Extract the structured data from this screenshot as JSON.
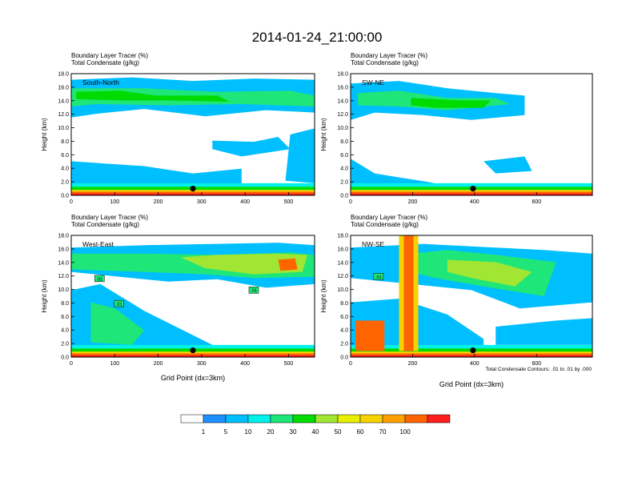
{
  "title": "2014-01-24_21:00:00",
  "panel_header": {
    "line1_label": "Boundary Layer Tracer",
    "line1_unit": "(%)",
    "line2_label": "Total Condensate",
    "line2_unit": "(g/kg)"
  },
  "xlabel": "Grid Point (dx=3km)",
  "ylabel": "Height (km)",
  "contour_note": "Total Condensate Contours: .01 to .01 by .000",
  "colorbar": {
    "labels": [
      "1",
      "5",
      "10",
      "20",
      "30",
      "40",
      "50",
      "60",
      "70",
      "100"
    ],
    "colors": [
      "#ffffff",
      "#1e90ff",
      "#00bfff",
      "#00f0ea",
      "#1ee678",
      "#00dc00",
      "#a0e632",
      "#e6f000",
      "#f5d200",
      "#ffa000",
      "#ff6400",
      "#ff1e1e"
    ]
  },
  "chart_data": [
    {
      "type": "heatmap",
      "panel_label": "South-North",
      "xlim": [
        0,
        560
      ],
      "ylim": [
        0,
        18
      ],
      "xticks": [
        0,
        100,
        200,
        300,
        400,
        500
      ],
      "yticks": [
        "0.0",
        "2.0",
        "4.0",
        "6.0",
        "8.0",
        "10.0",
        "12.0",
        "14.0",
        "16.0",
        "18.0"
      ],
      "site_marker": {
        "x": 280,
        "y": 1.0
      },
      "contour_labels": []
    },
    {
      "type": "heatmap",
      "panel_label": "SW-NE",
      "xlim": [
        0,
        780
      ],
      "ylim": [
        0,
        18
      ],
      "xticks": [
        0,
        200,
        400,
        600
      ],
      "yticks": [
        "0.0",
        "2.0",
        "4.0",
        "6.0",
        "8.0",
        "10.0",
        "12.0",
        "14.0",
        "16.0",
        "18.0"
      ],
      "site_marker": {
        "x": 395,
        "y": 1.0
      },
      "contour_labels": []
    },
    {
      "type": "heatmap",
      "panel_label": "West-East",
      "xlim": [
        0,
        560
      ],
      "ylim": [
        0,
        18
      ],
      "xticks": [
        0,
        100,
        200,
        300,
        400,
        500
      ],
      "yticks": [
        "0.0",
        "2.0",
        "4.0",
        "6.0",
        "8.0",
        "10.0",
        "12.0",
        "14.0",
        "16.0",
        "18.0"
      ],
      "site_marker": {
        "x": 280,
        "y": 1.0
      },
      "contour_labels": [
        {
          "text": ".01",
          "x": 65,
          "y": 11.5
        },
        {
          "text": ".01",
          "x": 110,
          "y": 7.8
        },
        {
          "text": ".01",
          "x": 420,
          "y": 9.8
        }
      ]
    },
    {
      "type": "heatmap",
      "panel_label": "NW-SE",
      "xlim": [
        0,
        780
      ],
      "ylim": [
        0,
        18
      ],
      "xticks": [
        0,
        200,
        400,
        600
      ],
      "yticks": [
        "0.0",
        "2.0",
        "4.0",
        "6.0",
        "8.0",
        "10.0",
        "12.0",
        "14.0",
        "16.0",
        "18.0"
      ],
      "site_marker": {
        "x": 395,
        "y": 1.0
      },
      "contour_labels": [
        {
          "text": ".01",
          "x": 90,
          "y": 11.8
        }
      ]
    }
  ]
}
